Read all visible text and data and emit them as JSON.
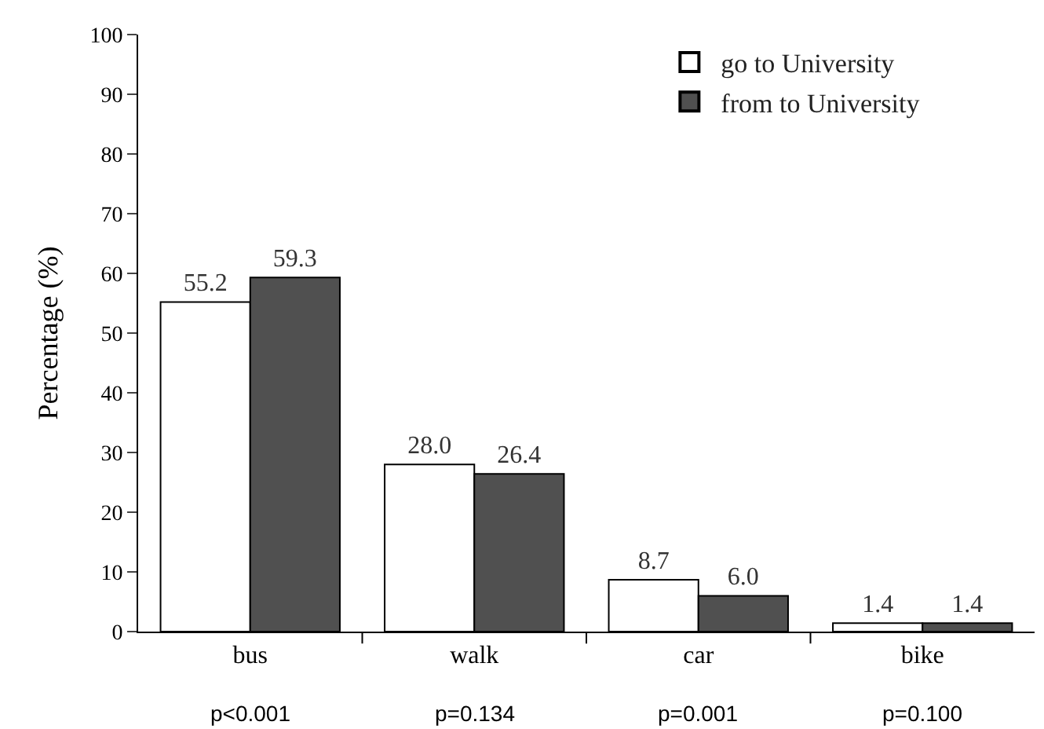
{
  "chart_data": {
    "type": "bar",
    "ylabel": "Percentage (%)",
    "categories": [
      "bus",
      "walk",
      "car",
      "bike"
    ],
    "series": [
      {
        "name": "go to University",
        "color": "#ffffff",
        "values": [
          55.2,
          28.0,
          8.7,
          1.4
        ],
        "value_labels": [
          "55.2",
          "28.0",
          "8.7",
          "1.4"
        ]
      },
      {
        "name": "from to University",
        "color": "#505050",
        "values": [
          59.3,
          26.4,
          6.0,
          1.4
        ],
        "value_labels": [
          "59.3",
          "26.4",
          "6.0",
          "1.4"
        ]
      }
    ],
    "ylim": [
      0,
      100
    ],
    "yticks": [
      0,
      10,
      20,
      30,
      40,
      50,
      60,
      70,
      80,
      90,
      100
    ],
    "legend": "top right",
    "annotations": [
      "p<0.001",
      "p=0.134",
      "p=0.001",
      "p=0.100"
    ]
  }
}
